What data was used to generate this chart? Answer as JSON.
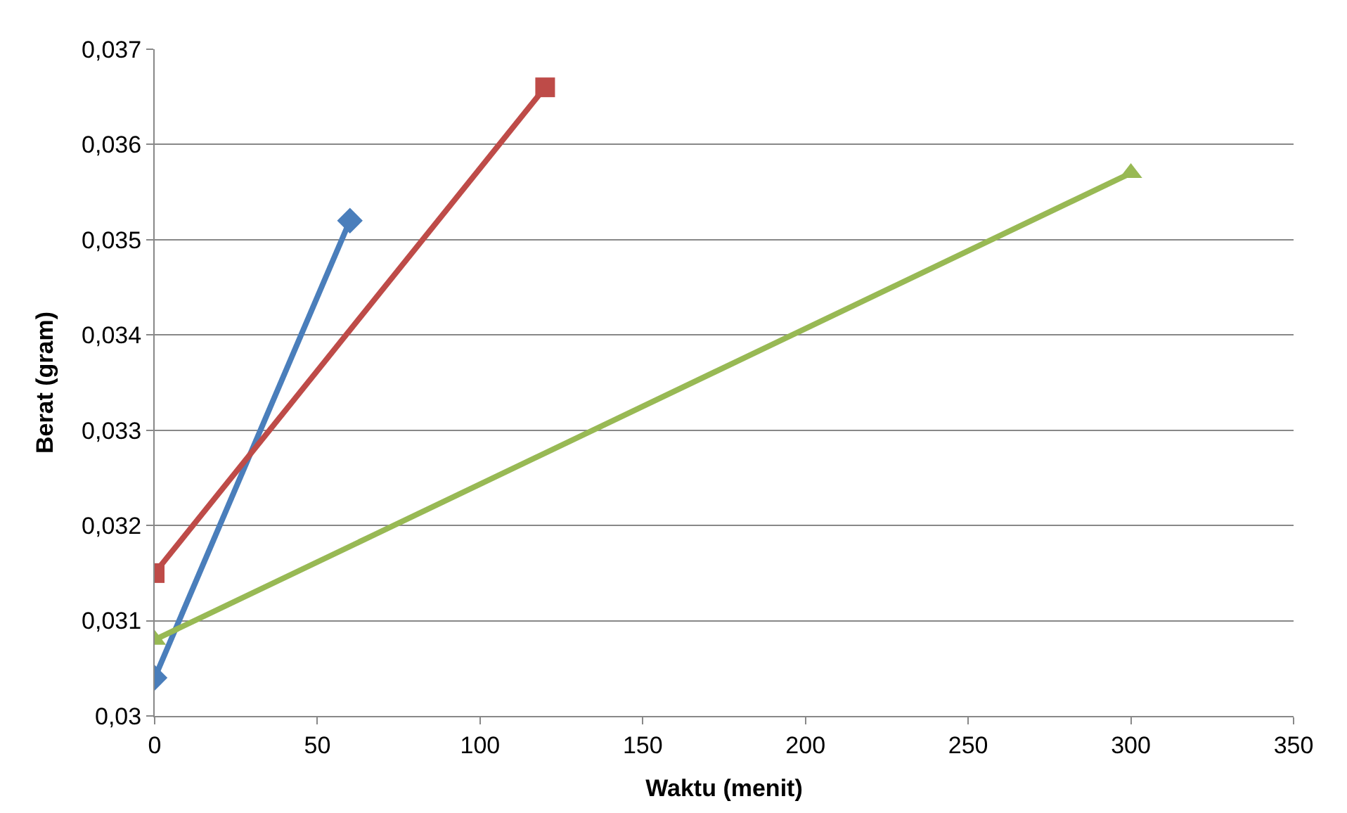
{
  "chart_data": {
    "type": "line",
    "xlabel": "Waktu (menit)",
    "ylabel": "Berat (gram)",
    "series": [
      {
        "color": "#4a7ebb",
        "marker": "diamond",
        "x": [
          0,
          60
        ],
        "values": [
          0.0304,
          0.0352
        ]
      },
      {
        "color": "#be4b48",
        "marker": "square",
        "x": [
          0,
          120
        ],
        "values": [
          0.0315,
          0.0366
        ]
      },
      {
        "color": "#98b954",
        "marker": "triangle",
        "x": [
          0,
          300
        ],
        "values": [
          0.0308,
          0.0357
        ]
      }
    ],
    "xlim": [
      0,
      350
    ],
    "xticks": [
      0,
      50,
      100,
      150,
      200,
      250,
      300,
      350
    ],
    "ylim": [
      0.03,
      0.037
    ],
    "yticks": [
      {
        "value": 0.03,
        "label": "0,03"
      },
      {
        "value": 0.031,
        "label": "0,031"
      },
      {
        "value": 0.032,
        "label": "0,032"
      },
      {
        "value": 0.033,
        "label": "0,033"
      },
      {
        "value": 0.034,
        "label": "0,034"
      },
      {
        "value": 0.035,
        "label": "0,035"
      },
      {
        "value": 0.036,
        "label": "0,036"
      },
      {
        "value": 0.037,
        "label": "0,037"
      }
    ],
    "grid": "y",
    "legend": false
  }
}
